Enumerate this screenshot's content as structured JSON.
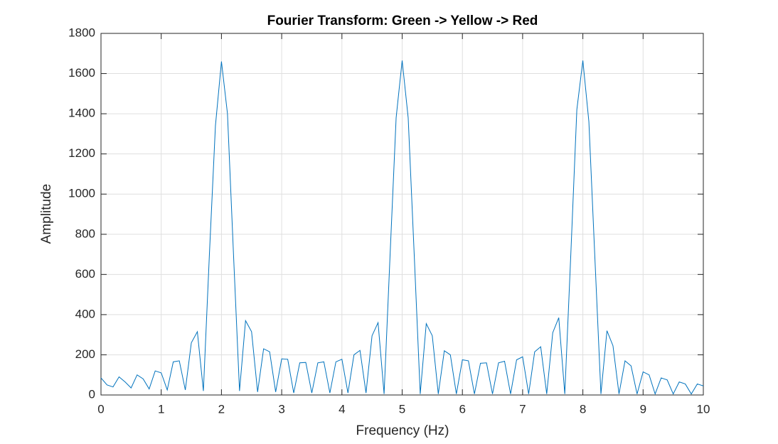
{
  "chart_data": {
    "type": "line",
    "title": "Fourier Transform: Green -> Yellow -> Red",
    "xlabel": "Frequency (Hz)",
    "ylabel": "Amplitude",
    "x": [
      0,
      0.1,
      0.2,
      0.3,
      0.4,
      0.5,
      0.6,
      0.7,
      0.8,
      0.9,
      1,
      1.1,
      1.2,
      1.3,
      1.4,
      1.5,
      1.6,
      1.7,
      1.8,
      1.9,
      2,
      2.1,
      2.2,
      2.3,
      2.4,
      2.5,
      2.6,
      2.7,
      2.8,
      2.9,
      3,
      3.1,
      3.2,
      3.3,
      3.4,
      3.5,
      3.6,
      3.7,
      3.8,
      3.9,
      4,
      4.1,
      4.2,
      4.3,
      4.4,
      4.5,
      4.6,
      4.7,
      4.8,
      4.9,
      5,
      5.1,
      5.2,
      5.3,
      5.4,
      5.5,
      5.6,
      5.7,
      5.8,
      5.9,
      6,
      6.1,
      6.2,
      6.3,
      6.4,
      6.5,
      6.6,
      6.7,
      6.8,
      6.9,
      7,
      7.1,
      7.2,
      7.3,
      7.4,
      7.5,
      7.6,
      7.7,
      7.8,
      7.9,
      8,
      8.1,
      8.2,
      8.3,
      8.4,
      8.5,
      8.6,
      8.7,
      8.8,
      8.9,
      9,
      9.1,
      9.2,
      9.3,
      9.4,
      9.5,
      9.6,
      9.7,
      9.8,
      9.9,
      10
    ],
    "values": [
      85,
      50,
      40,
      90,
      65,
      35,
      100,
      80,
      30,
      120,
      110,
      25,
      165,
      170,
      25,
      260,
      315,
      20,
      700,
      1340,
      1660,
      1400,
      700,
      20,
      370,
      315,
      15,
      230,
      215,
      15,
      180,
      178,
      10,
      160,
      162,
      10,
      160,
      165,
      10,
      165,
      178,
      10,
      200,
      222,
      10,
      295,
      360,
      5,
      700,
      1380,
      1665,
      1380,
      700,
      5,
      355,
      295,
      5,
      220,
      200,
      5,
      175,
      170,
      5,
      158,
      160,
      5,
      160,
      168,
      5,
      175,
      190,
      5,
      215,
      240,
      5,
      310,
      385,
      5,
      700,
      1420,
      1665,
      1360,
      680,
      5,
      320,
      245,
      5,
      170,
      145,
      5,
      115,
      100,
      5,
      85,
      75,
      5,
      65,
      55,
      5,
      55,
      45
    ],
    "color": "#0072bd",
    "xlim": [
      0,
      10
    ],
    "xticks": [
      0,
      1,
      2,
      3,
      4,
      5,
      6,
      7,
      8,
      9,
      10
    ],
    "ylim": [
      0,
      1800
    ],
    "yticks": [
      0,
      200,
      400,
      600,
      800,
      1000,
      1200,
      1400,
      1600,
      1800
    ],
    "grid": true
  }
}
